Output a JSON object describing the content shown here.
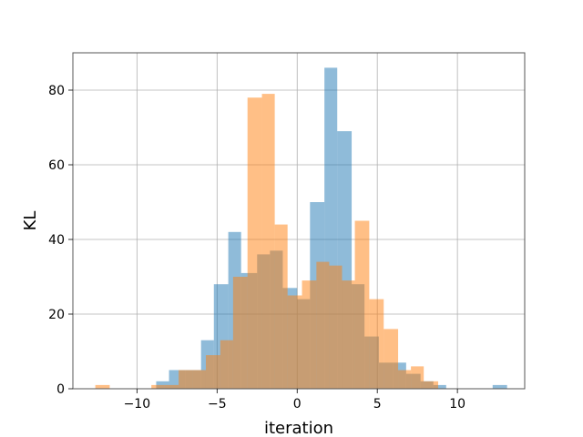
{
  "chart_data": {
    "type": "bar",
    "title": "",
    "xlabel": "iteration",
    "ylabel": "KL",
    "xlim": [
      -14.0,
      14.2
    ],
    "ylim": [
      0,
      90
    ],
    "x_ticks": [
      -10,
      -5,
      0,
      5,
      10
    ],
    "x_tick_labels": [
      "−10",
      "−5",
      "0",
      "5",
      "10"
    ],
    "y_ticks": [
      0,
      20,
      40,
      60,
      80
    ],
    "y_tick_labels": [
      "0",
      "20",
      "40",
      "60",
      "80"
    ],
    "grid": true,
    "legend": "none",
    "series": [
      {
        "color": "#1f77b4",
        "opacity": 0.5,
        "bins": [
          [
            -8.8,
            -8.0,
            2
          ],
          [
            -8.0,
            -7.0,
            5
          ],
          [
            -7.0,
            -6.0,
            5
          ],
          [
            -6.0,
            -5.2,
            13
          ],
          [
            -5.2,
            -4.3,
            28
          ],
          [
            -4.3,
            -3.5,
            42
          ],
          [
            -3.5,
            -2.5,
            31
          ],
          [
            -2.5,
            -1.7,
            36
          ],
          [
            -1.7,
            -0.9,
            37
          ],
          [
            -0.9,
            0.0,
            27
          ],
          [
            0.0,
            0.8,
            24
          ],
          [
            0.8,
            1.7,
            50
          ],
          [
            1.7,
            2.5,
            86
          ],
          [
            2.5,
            3.4,
            69
          ],
          [
            3.4,
            4.2,
            28
          ],
          [
            4.2,
            5.1,
            14
          ],
          [
            5.1,
            6.0,
            7
          ],
          [
            6.0,
            6.8,
            7
          ],
          [
            6.8,
            7.7,
            4
          ],
          [
            7.7,
            8.5,
            2
          ],
          [
            8.5,
            9.3,
            1
          ],
          [
            12.2,
            13.1,
            1
          ]
        ]
      },
      {
        "color": "#ff7f0e",
        "opacity": 0.5,
        "bins": [
          [
            -12.6,
            -11.7,
            1
          ],
          [
            -9.1,
            -8.3,
            1
          ],
          [
            -8.3,
            -7.4,
            1
          ],
          [
            -7.4,
            -6.5,
            5
          ],
          [
            -6.5,
            -5.7,
            5
          ],
          [
            -5.7,
            -4.8,
            9
          ],
          [
            -4.8,
            -4.0,
            13
          ],
          [
            -4.0,
            -3.1,
            30
          ],
          [
            -3.1,
            -2.2,
            78
          ],
          [
            -2.2,
            -1.4,
            79
          ],
          [
            -1.4,
            -0.6,
            44
          ],
          [
            -0.6,
            0.3,
            25
          ],
          [
            0.3,
            1.2,
            29
          ],
          [
            1.2,
            2.0,
            34
          ],
          [
            2.0,
            2.8,
            33
          ],
          [
            2.8,
            3.6,
            29
          ],
          [
            3.6,
            4.5,
            45
          ],
          [
            4.5,
            5.4,
            24
          ],
          [
            5.4,
            6.3,
            16
          ],
          [
            6.3,
            7.1,
            5
          ],
          [
            7.1,
            7.9,
            6
          ],
          [
            7.9,
            8.8,
            2
          ]
        ]
      }
    ]
  }
}
